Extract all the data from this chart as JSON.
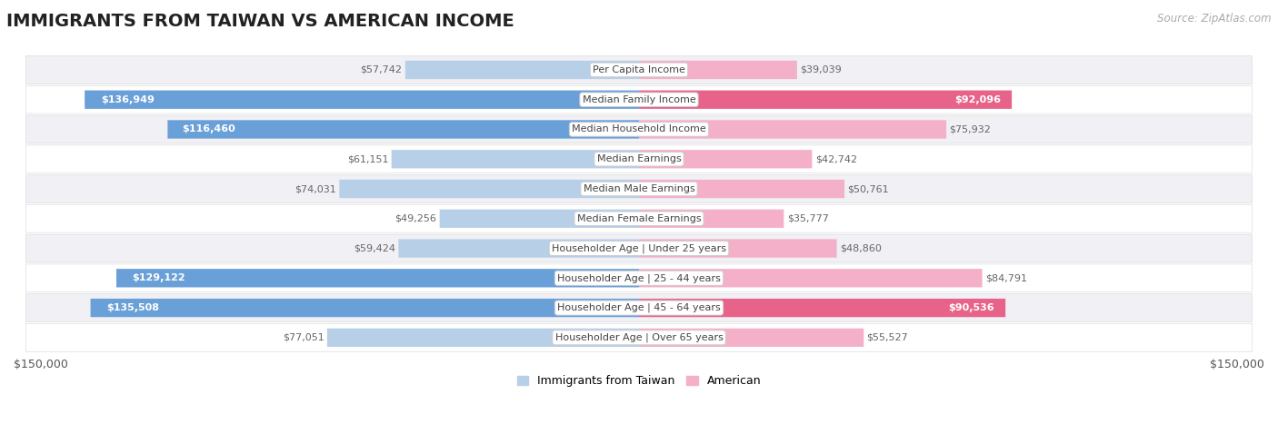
{
  "title": "IMMIGRANTS FROM TAIWAN VS AMERICAN INCOME",
  "source": "Source: ZipAtlas.com",
  "categories": [
    "Per Capita Income",
    "Median Family Income",
    "Median Household Income",
    "Median Earnings",
    "Median Male Earnings",
    "Median Female Earnings",
    "Householder Age | Under 25 years",
    "Householder Age | 25 - 44 years",
    "Householder Age | 45 - 64 years",
    "Householder Age | Over 65 years"
  ],
  "taiwan_values": [
    57742,
    136949,
    116460,
    61151,
    74031,
    49256,
    59424,
    129122,
    135508,
    77051
  ],
  "american_values": [
    39039,
    92096,
    75932,
    42742,
    50761,
    35777,
    48860,
    84791,
    90536,
    55527
  ],
  "taiwan_dark_flags": [
    false,
    true,
    true,
    false,
    false,
    false,
    false,
    true,
    true,
    false
  ],
  "american_dark_flags": [
    false,
    true,
    false,
    false,
    false,
    false,
    false,
    false,
    true,
    false
  ],
  "max_val": 150000,
  "taiwan_color_dark": "#6aa0d8",
  "taiwan_color_light": "#b8cfe8",
  "american_color_dark": "#e8638a",
  "american_color_light": "#f4b0c8",
  "row_bg_color": "#f0f0f5",
  "row_alt_color": "#ffffff",
  "xlabel_left": "$150,000",
  "xlabel_right": "$150,000",
  "legend_taiwan": "Immigrants from Taiwan",
  "legend_american": "American",
  "title_fontsize": 14,
  "source_fontsize": 8.5,
  "bar_fontsize": 8,
  "label_fontsize": 8,
  "axis_fontsize": 9
}
